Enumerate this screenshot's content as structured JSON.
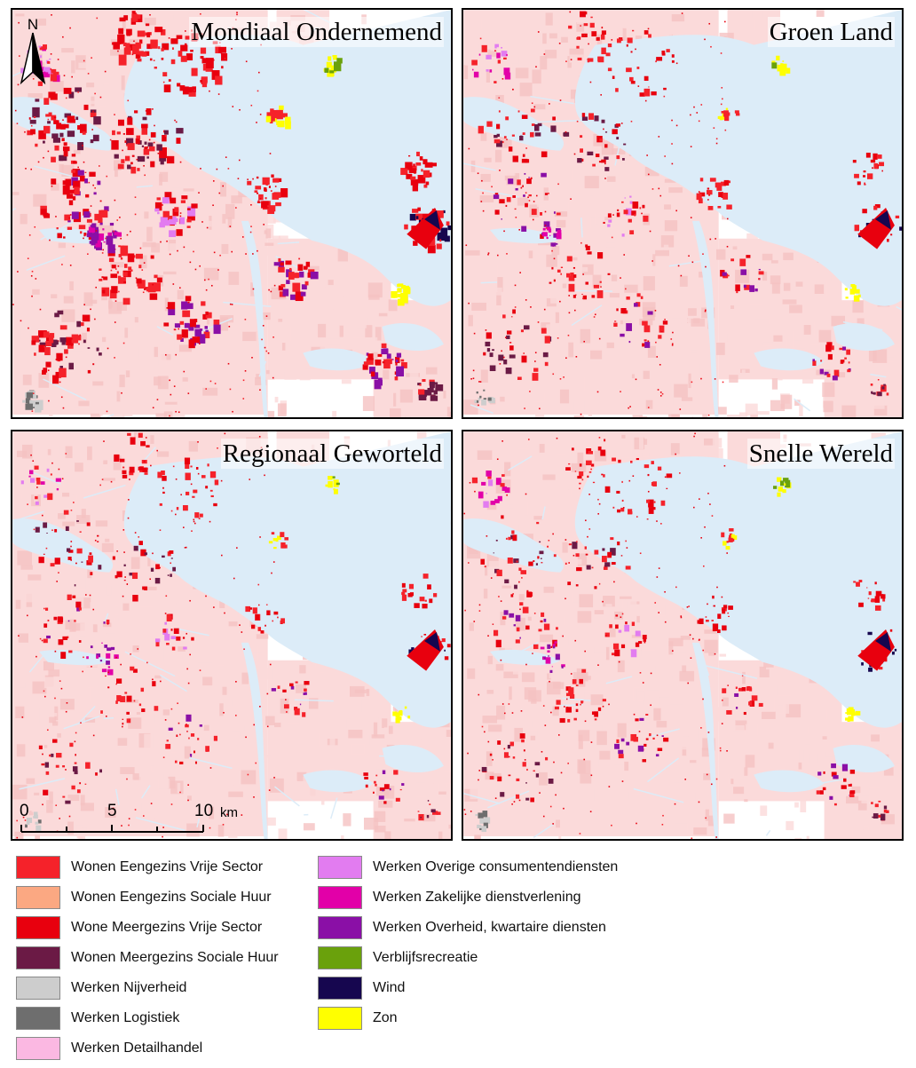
{
  "panels": [
    {
      "id": "p1",
      "title": "Mondiaal Ondernemend",
      "level": 1.0,
      "seed": 11
    },
    {
      "id": "p2",
      "title": "Groen Land",
      "level": 0.55,
      "seed": 23
    },
    {
      "id": "p3",
      "title": "Regionaal Geworteld",
      "level": 0.45,
      "seed": 37
    },
    {
      "id": "p4",
      "title": "Snelle Wereld",
      "level": 0.5,
      "seed": 53
    }
  ],
  "north_label": "N",
  "scale": {
    "ticks": [
      "0",
      "5",
      "10"
    ],
    "unit": "km"
  },
  "map_colors": {
    "water": "#dcecf8",
    "urban": "#fbdada",
    "urban_dark": "#f5c2c2"
  },
  "legend": [
    {
      "label": "Wonen Eengezins Vrije Sector",
      "color": "#f5222a"
    },
    {
      "label": "Wonen Eengezins Sociale Huur",
      "color": "#fba882"
    },
    {
      "label": "Wone Meergezins Vrije Sector",
      "color": "#e8000e"
    },
    {
      "label": "Wonen Meergezins Sociale Huur",
      "color": "#6b1a45"
    },
    {
      "label": "Werken Nijverheid",
      "color": "#cdcdcd"
    },
    {
      "label": "Werken Logistiek",
      "color": "#6e6e6e"
    },
    {
      "label": "Werken Detailhandel",
      "color": "#fbb8e2"
    },
    {
      "label": "Werken Overige consumentendiensten",
      "color": "#e27cf0"
    },
    {
      "label": "Werken Zakelijke dienstverlening",
      "color": "#e200a8"
    },
    {
      "label": "Werken Overheid, kwartaire diensten",
      "color": "#8a0fa6"
    },
    {
      "label": "Verblijfsrecreatie",
      "color": "#6aa10c"
    },
    {
      "label": "Wind",
      "color": "#16064f"
    },
    {
      "label": "Zon",
      "color": "#ffff00"
    }
  ]
}
